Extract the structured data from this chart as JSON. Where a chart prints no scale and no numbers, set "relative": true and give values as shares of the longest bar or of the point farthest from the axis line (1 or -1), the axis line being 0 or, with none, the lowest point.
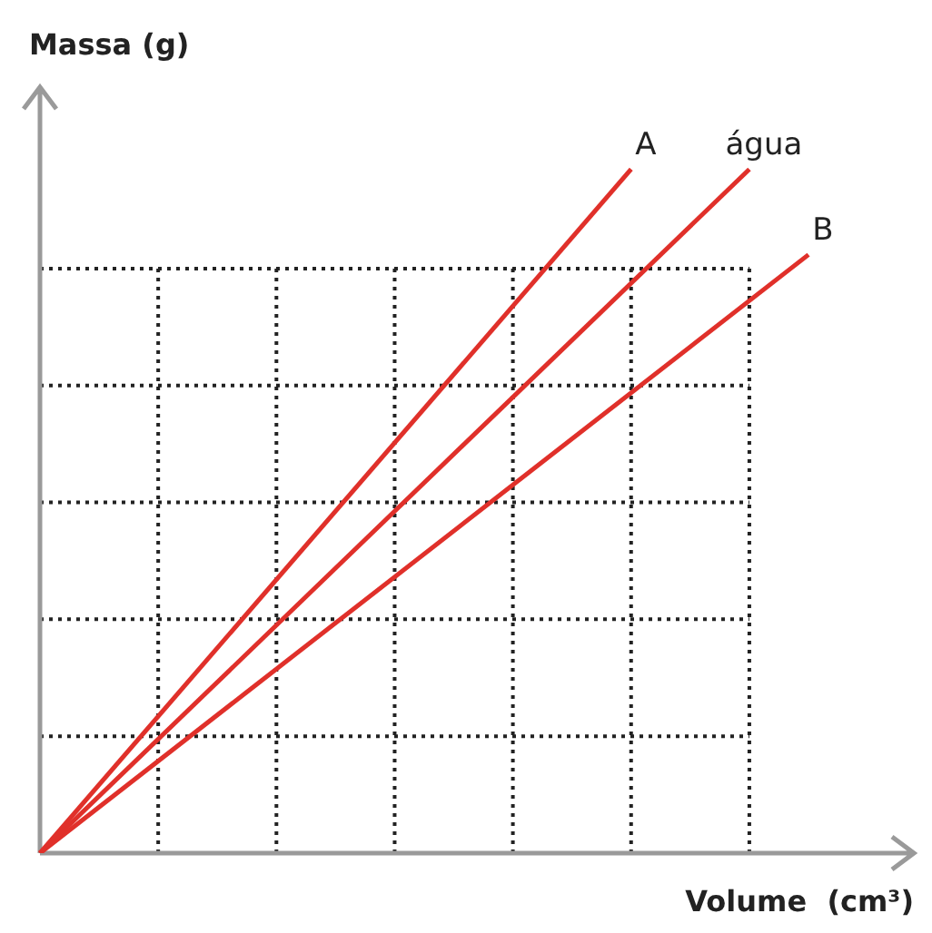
{
  "chart_data": {
    "type": "line",
    "relative": true,
    "xlabel": "Volume  (cm³)",
    "ylabel": "Massa (g)",
    "grid": true,
    "marker": "none",
    "line_style": "solid",
    "categories": [
      null,
      null,
      null,
      null,
      null,
      null,
      null,
      null,
      null,
      null,
      null,
      null,
      null,
      null
    ],
    "series": [
      {
        "name": "A",
        "color": "#e0302a",
        "values": [
          0,
          null,
          null,
          null,
          null,
          null,
          null,
          null,
          null,
          null,
          1,
          null,
          null,
          null
        ]
      },
      {
        "name": "água",
        "color": "#e0302a",
        "values": [
          0,
          null,
          null,
          null,
          null,
          null,
          null,
          null,
          null,
          null,
          null,
          null,
          1,
          null
        ]
      },
      {
        "name": "B",
        "color": "#e0302a",
        "values": [
          0,
          null,
          null,
          null,
          null,
          null,
          null,
          null,
          null,
          null,
          null,
          null,
          null,
          0.875
        ]
      }
    ]
  }
}
